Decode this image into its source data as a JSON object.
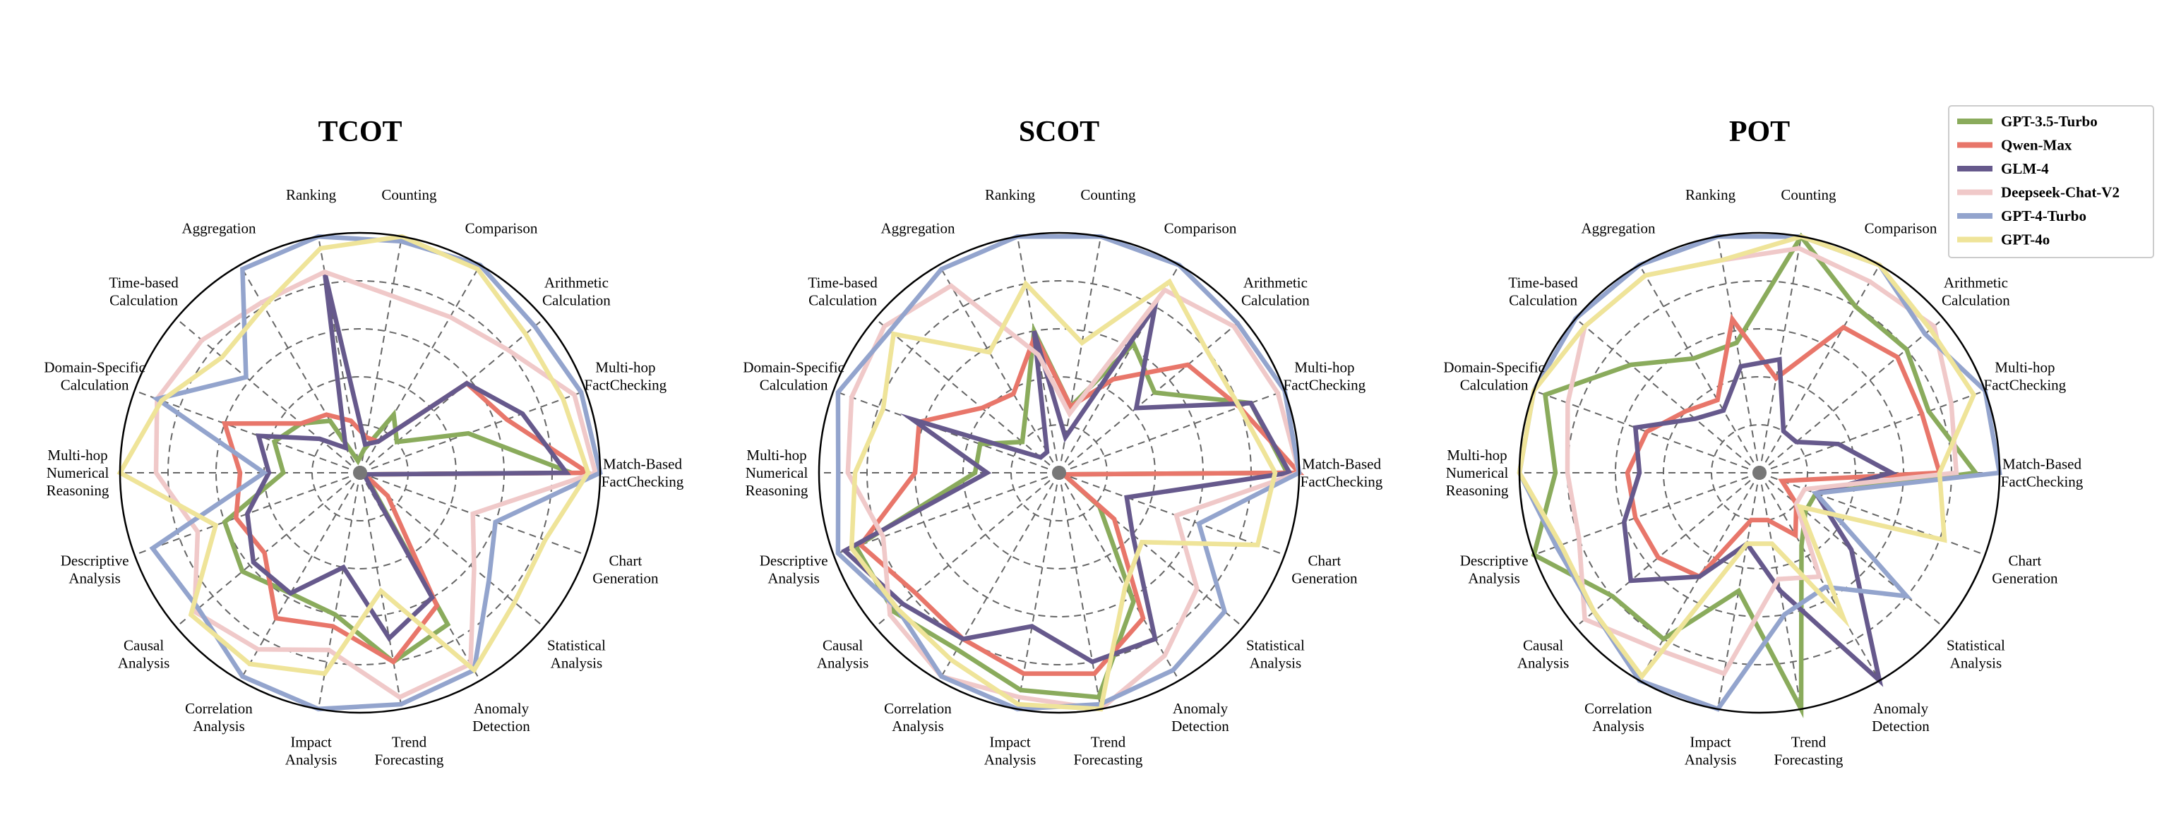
{
  "chart_data": [
    {
      "type": "radar",
      "title": "TCOT",
      "categories": [
        "Match-Based\nFactChecking",
        "Multi-hop\nFactChecking",
        "Arithmetic\nCalculation",
        "Comparison",
        "Counting",
        "Ranking",
        "Aggregation",
        "Time-based\nCalculation",
        "Domain-Specific\nCalculation",
        "Multi-hop\nNumerical\nReasoning",
        "Descriptive\nAnalysis",
        "Causal\nAnalysis",
        "Correlation\nAnalysis",
        "Impact\nAnalysis",
        "Trend\nForecasting",
        "Anomaly\nDetection",
        "Statistical\nAnalysis",
        "Chart\nGeneration"
      ],
      "rlim": [
        0,
        100
      ],
      "series": [
        {
          "name": "GPT-3.5-Turbo",
          "values": [
            88,
            48,
            20,
            28,
            10,
            5,
            25,
            32,
            38,
            32,
            60,
            64,
            58,
            60,
            80,
            73,
            4,
            2
          ]
        },
        {
          "name": "Qwen-Max",
          "values": [
            95,
            65,
            58,
            15,
            15,
            22,
            28,
            32,
            60,
            50,
            55,
            52,
            70,
            65,
            80,
            64,
            15,
            2
          ]
        },
        {
          "name": "GLM-4",
          "values": [
            86,
            72,
            58,
            15,
            12,
            85,
            12,
            22,
            45,
            38,
            50,
            58,
            58,
            40,
            70,
            60,
            3,
            2
          ]
        },
        {
          "name": "Deepseek-Chat-V2",
          "values": [
            98,
            95,
            80,
            75,
            75,
            85,
            82,
            86,
            90,
            85,
            72,
            90,
            85,
            75,
            95,
            92,
            62,
            50
          ]
        },
        {
          "name": "GPT-4-Turbo",
          "values": [
            100,
            98,
            95,
            100,
            98,
            100,
            98,
            62,
            90,
            40,
            92,
            88,
            98,
            100,
            98,
            95,
            70,
            60
          ]
        },
        {
          "name": "GPT-4o",
          "values": [
            95,
            90,
            90,
            98,
            100,
            95,
            80,
            75,
            88,
            100,
            64,
            92,
            92,
            85,
            50,
            95,
            84,
            82
          ]
        }
      ]
    },
    {
      "type": "radar",
      "title": "SCOT",
      "categories": [
        "Match-Based\nFactChecking",
        "Multi-hop\nFactChecking",
        "Arithmetic\nCalculation",
        "Comparison",
        "Counting",
        "Ranking",
        "Aggregation",
        "Time-based\nCalculation",
        "Domain-Specific\nCalculation",
        "Multi-hop\nNumerical\nReasoning",
        "Descriptive\nAnalysis",
        "Causal\nAnalysis",
        "Correlation\nAnalysis",
        "Impact\nAnalysis",
        "Trend\nForecasting",
        "Anomaly\nDetection",
        "Statistical\nAnalysis",
        "Chart\nGeneration"
      ],
      "rlim": [
        0,
        100
      ],
      "series": [
        {
          "name": "GPT-3.5-Turbo",
          "values": [
            95,
            85,
            52,
            62,
            28,
            60,
            28,
            20,
            35,
            35,
            90,
            90,
            85,
            92,
            95,
            62,
            22,
            2
          ]
        },
        {
          "name": "Qwen-Max",
          "values": [
            100,
            80,
            70,
            45,
            28,
            58,
            38,
            42,
            62,
            60,
            88,
            78,
            80,
            85,
            85,
            70,
            30,
            2
          ]
        },
        {
          "name": "GLM-4",
          "values": [
            96,
            85,
            42,
            80,
            15,
            60,
            10,
            10,
            65,
            30,
            95,
            85,
            80,
            65,
            80,
            80,
            40,
            30
          ]
        },
        {
          "name": "Deepseek-Chat-V2",
          "values": [
            100,
            97,
            95,
            88,
            25,
            50,
            90,
            95,
            92,
            88,
            78,
            92,
            98,
            95,
            100,
            88,
            75,
            52
          ]
        },
        {
          "name": "GPT-4-Turbo",
          "values": [
            100,
            100,
            97,
            100,
            100,
            100,
            98,
            92,
            98,
            92,
            98,
            88,
            98,
            100,
            98,
            95,
            90,
            62
          ]
        },
        {
          "name": "GPT-4o",
          "values": [
            90,
            80,
            80,
            92,
            55,
            80,
            58,
            90,
            78,
            85,
            92,
            88,
            90,
            98,
            100,
            55,
            45,
            88
          ]
        }
      ]
    },
    {
      "type": "radar",
      "title": "POT",
      "categories": [
        "Match-Based\nFactChecking",
        "Multi-hop\nFactChecking",
        "Arithmetic\nCalculation",
        "Comparison",
        "Counting",
        "Ranking",
        "Aggregation",
        "Time-based\nCalculation",
        "Domain-Specific\nCalculation",
        "Multi-hop\nNumerical\nReasoning",
        "Descriptive\nAnalysis",
        "Causal\nAnalysis",
        "Correlation\nAnalysis",
        "Impact\nAnalysis",
        "Trend\nForecasting",
        "Anomaly\nDetection",
        "Statistical\nAnalysis",
        "Chart\nGeneration"
      ],
      "rlim": [
        0,
        100
      ],
      "series": [
        {
          "name": "GPT-3.5-Turbo",
          "values": [
            90,
            75,
            80,
            80,
            100,
            55,
            55,
            70,
            95,
            85,
            100,
            80,
            80,
            50,
            100,
            35,
            25,
            25
          ]
        },
        {
          "name": "Qwen-Max",
          "values": [
            75,
            72,
            75,
            70,
            40,
            65,
            35,
            40,
            50,
            55,
            55,
            55,
            50,
            20,
            20,
            30,
            20,
            10
          ]
        },
        {
          "name": "GLM-4",
          "values": [
            55,
            35,
            20,
            20,
            48,
            45,
            30,
            35,
            55,
            50,
            60,
            70,
            50,
            30,
            50,
            100,
            50,
            25
          ]
        },
        {
          "name": "Deepseek-Chat-V2",
          "values": [
            82,
            85,
            95,
            92,
            95,
            90,
            95,
            95,
            85,
            80,
            80,
            95,
            85,
            85,
            45,
            50,
            20,
            20
          ]
        },
        {
          "name": "GPT-4-Turbo",
          "values": [
            100,
            100,
            90,
            100,
            100,
            100,
            100,
            100,
            100,
            100,
            90,
            90,
            100,
            100,
            60,
            55,
            80,
            25
          ]
        },
        {
          "name": "GPT-4o",
          "values": [
            75,
            95,
            93,
            100,
            100,
            90,
            95,
            95,
            100,
            100,
            88,
            90,
            98,
            30,
            30,
            70,
            22,
            82
          ]
        }
      ]
    }
  ],
  "legend": {
    "placement": "top-right",
    "items": [
      {
        "name": "GPT-3.5-Turbo",
        "color": "#8aab5c"
      },
      {
        "name": "Qwen-Max",
        "color": "#e8766a"
      },
      {
        "name": "GLM-4",
        "color": "#66598c"
      },
      {
        "name": "Deepseek-Chat-V2",
        "color": "#f0c9c9"
      },
      {
        "name": "GPT-4-Turbo",
        "color": "#93a4cd"
      },
      {
        "name": "GPT-4o",
        "color": "#efe499"
      }
    ]
  },
  "colors": {
    "grid": "#666666",
    "outer_ring": "#000000",
    "center_dot": "#777777"
  }
}
